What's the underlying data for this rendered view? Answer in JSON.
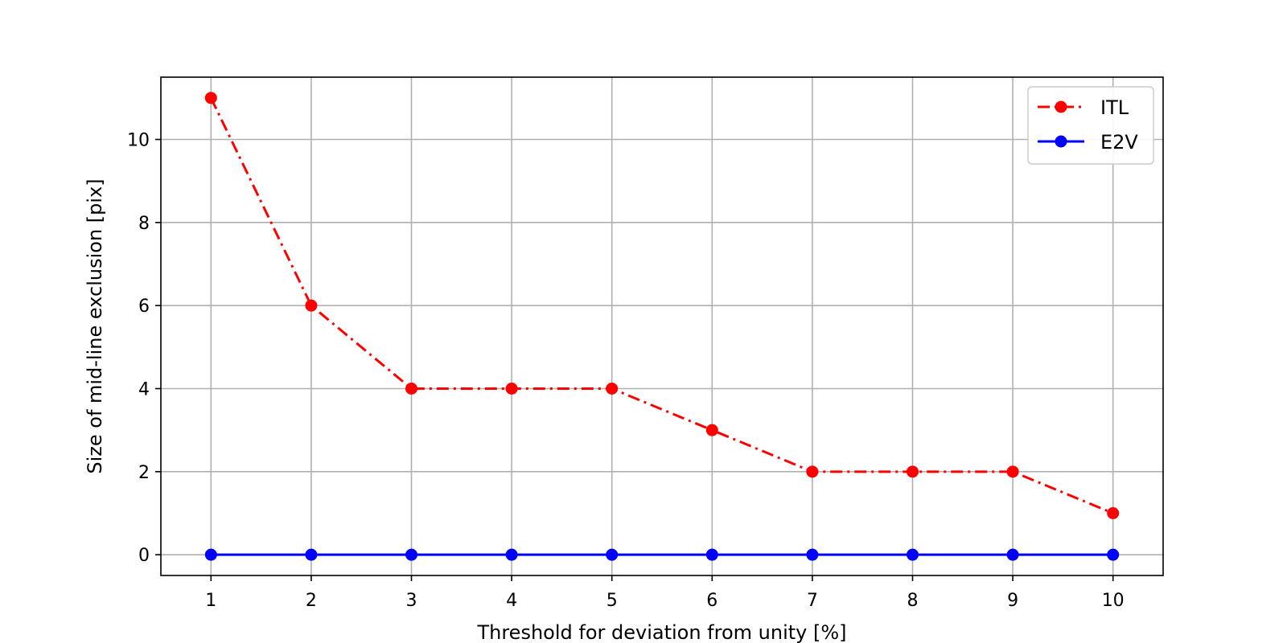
{
  "chart_data": {
    "type": "line",
    "title": "",
    "xlabel": "Threshold for deviation from unity [%]",
    "ylabel": "Size of mid-line exclusion [pix]",
    "x": [
      1,
      2,
      3,
      4,
      5,
      6,
      7,
      8,
      9,
      10
    ],
    "xticks": [
      "1",
      "2",
      "3",
      "4",
      "5",
      "6",
      "7",
      "8",
      "9",
      "10"
    ],
    "yticks": [
      "0",
      "2",
      "4",
      "6",
      "8",
      "10"
    ],
    "xlim": [
      0.5,
      10.5
    ],
    "ylim": [
      -0.5,
      11.5
    ],
    "grid": true,
    "legend_position": "top-right",
    "series": [
      {
        "name": "ITL",
        "color": "#ff0000",
        "line_style": "dash-dot",
        "marker": "circle",
        "values": [
          11,
          6,
          4,
          4,
          4,
          3,
          2,
          2,
          2,
          1
        ]
      },
      {
        "name": "E2V",
        "color": "#0000ff",
        "line_style": "solid",
        "marker": "circle",
        "values": [
          0,
          0,
          0,
          0,
          0,
          0,
          0,
          0,
          0,
          0
        ]
      }
    ]
  }
}
